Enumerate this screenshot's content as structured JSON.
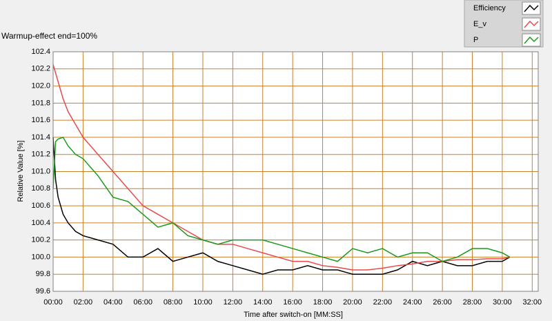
{
  "chart_data": {
    "type": "line",
    "annotation": "Warmup-effect end=100%",
    "x_label": "Time after switch-on [MM:SS]",
    "y_label": "Relative Value [%]",
    "x": [
      0,
      10,
      20,
      40,
      60,
      90,
      120,
      180,
      240,
      300,
      360,
      420,
      480,
      540,
      600,
      660,
      720,
      780,
      840,
      900,
      960,
      1020,
      1080,
      1140,
      1200,
      1260,
      1320,
      1380,
      1440,
      1500,
      1560,
      1620,
      1680,
      1740,
      1800,
      1830
    ],
    "series": [
      {
        "name": "Efficiency",
        "color": "#000000",
        "values": [
          101.4,
          100.9,
          100.7,
          100.5,
          100.4,
          100.3,
          100.25,
          100.2,
          100.15,
          100.0,
          100.0,
          100.1,
          99.95,
          100.0,
          100.05,
          99.95,
          99.9,
          99.85,
          99.8,
          99.85,
          99.85,
          99.9,
          99.85,
          99.85,
          99.8,
          99.8,
          99.8,
          99.85,
          99.95,
          99.9,
          99.95,
          99.9,
          99.9,
          99.95,
          99.95,
          100.0
        ]
      },
      {
        "name": "E_v",
        "color": "#e84a4a",
        "values": [
          102.25,
          102.15,
          102.05,
          101.85,
          101.7,
          101.55,
          101.4,
          101.2,
          101.0,
          100.8,
          100.6,
          100.5,
          100.4,
          100.3,
          100.2,
          100.15,
          100.15,
          100.1,
          100.05,
          100.0,
          99.95,
          99.95,
          99.9,
          99.88,
          99.85,
          99.85,
          99.87,
          99.9,
          99.92,
          99.95,
          99.95,
          99.97,
          99.97,
          99.98,
          99.98,
          100.0
        ]
      },
      {
        "name": "P",
        "color": "#1a9a1a",
        "values": [
          100.8,
          101.35,
          101.38,
          101.4,
          101.3,
          101.2,
          101.15,
          100.95,
          100.7,
          100.65,
          100.5,
          100.35,
          100.4,
          100.25,
          100.2,
          100.15,
          100.2,
          100.2,
          100.2,
          100.15,
          100.1,
          100.05,
          100.0,
          99.95,
          100.1,
          100.05,
          100.1,
          100.0,
          100.05,
          100.05,
          99.95,
          100.0,
          100.1,
          100.1,
          100.05,
          100.0
        ]
      }
    ],
    "xlim": [
      0,
      1944
    ],
    "xticks": [
      {
        "value": 0,
        "label": "00:00"
      },
      {
        "value": 120,
        "label": "02:00"
      },
      {
        "value": 240,
        "label": "04:00"
      },
      {
        "value": 360,
        "label": "06:00"
      },
      {
        "value": 480,
        "label": "08:00"
      },
      {
        "value": 600,
        "label": "10:00"
      },
      {
        "value": 720,
        "label": "12:00"
      },
      {
        "value": 840,
        "label": "14:00"
      },
      {
        "value": 960,
        "label": "16:00"
      },
      {
        "value": 1080,
        "label": "18:00"
      },
      {
        "value": 1200,
        "label": "20:00"
      },
      {
        "value": 1320,
        "label": "22:00"
      },
      {
        "value": 1440,
        "label": "24:00"
      },
      {
        "value": 1560,
        "label": "26:00"
      },
      {
        "value": 1680,
        "label": "28:00"
      },
      {
        "value": 1800,
        "label": "30:00"
      },
      {
        "value": 1920,
        "label": "32:00"
      }
    ],
    "ylim": [
      99.6,
      102.4
    ],
    "yticks": [
      99.6,
      99.8,
      {
        "value": 100,
        "label": "100.0"
      },
      100.2,
      100.4,
      100.6,
      100.8,
      {
        "value": 101,
        "label": "101.0"
      },
      101.2,
      101.4,
      101.6,
      101.8,
      {
        "value": 102,
        "label": "102.0"
      },
      102.2,
      102.4
    ],
    "grid": true,
    "grid_color": "#c8802a",
    "legend": "top-right"
  }
}
